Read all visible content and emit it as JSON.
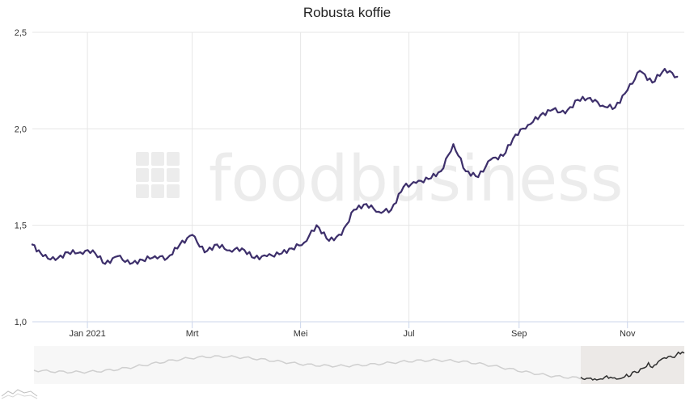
{
  "chart_data": {
    "type": "line",
    "title": "Robusta koffie",
    "watermark": "foodbusiness",
    "xlabel": "",
    "ylabel": "",
    "ylim": [
      1.0,
      2.5
    ],
    "y_ticks": [
      "1,0",
      "1,5",
      "2,0",
      "2,5"
    ],
    "x_ticks": [
      "Jan 2021",
      "Mrt",
      "Mei",
      "Jul",
      "Sep",
      "Nov"
    ],
    "grid": true,
    "legend": "none",
    "line_color": "#3d2f6b",
    "navigator": true,
    "series": [
      {
        "x": [
          "2020-12-01",
          "2020-12-07",
          "2020-12-14",
          "2020-12-21",
          "2020-12-28",
          "2021-01-04",
          "2021-01-11",
          "2021-01-18",
          "2021-01-25",
          "2021-02-01",
          "2021-02-08",
          "2021-02-15",
          "2021-02-22",
          "2021-03-01",
          "2021-03-08",
          "2021-03-15",
          "2021-03-22",
          "2021-03-29",
          "2021-04-05",
          "2021-04-12",
          "2021-04-19",
          "2021-04-26",
          "2021-05-03",
          "2021-05-10",
          "2021-05-17",
          "2021-05-24",
          "2021-05-31",
          "2021-06-07",
          "2021-06-14",
          "2021-06-21",
          "2021-06-28",
          "2021-07-05",
          "2021-07-12",
          "2021-07-19",
          "2021-07-26",
          "2021-08-02",
          "2021-08-09",
          "2021-08-16",
          "2021-08-23",
          "2021-08-30",
          "2021-09-06",
          "2021-09-13",
          "2021-09-20",
          "2021-09-27",
          "2021-10-04",
          "2021-10-11",
          "2021-10-18",
          "2021-10-25",
          "2021-11-01",
          "2021-11-08",
          "2021-11-15",
          "2021-11-22",
          "2021-11-29"
        ],
        "values": [
          1.4,
          1.34,
          1.32,
          1.36,
          1.36,
          1.37,
          1.3,
          1.34,
          1.3,
          1.32,
          1.34,
          1.33,
          1.4,
          1.45,
          1.36,
          1.4,
          1.37,
          1.38,
          1.33,
          1.34,
          1.35,
          1.38,
          1.41,
          1.5,
          1.42,
          1.45,
          1.58,
          1.61,
          1.57,
          1.58,
          1.7,
          1.72,
          1.74,
          1.78,
          1.92,
          1.78,
          1.75,
          1.84,
          1.86,
          1.97,
          2.02,
          2.07,
          2.1,
          2.08,
          2.15,
          2.16,
          2.12,
          2.11,
          2.2,
          2.3,
          2.24,
          2.31,
          2.27
        ]
      }
    ]
  }
}
